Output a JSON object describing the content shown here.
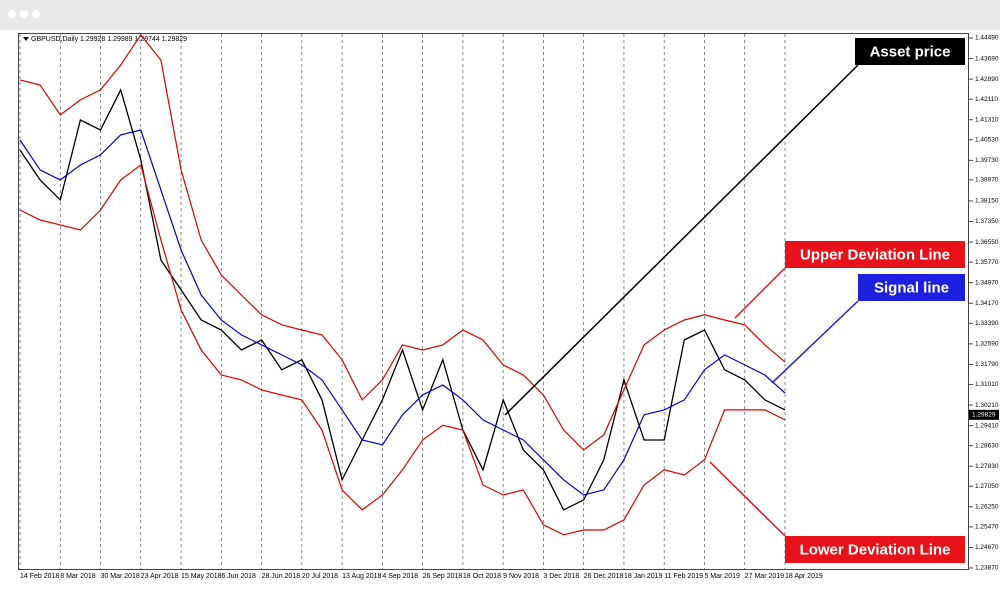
{
  "chart_data": {
    "type": "line",
    "title": "GBPUSD,Daily 1.29928 1.29989 1.29744 1.29829",
    "current_price": {
      "value": 1.29829,
      "label": "1.29829"
    },
    "categories": [
      "14 Feb 2018",
      null,
      "8 Mar 2018",
      null,
      "30 Mar 2018",
      null,
      "23 Apr 2018",
      null,
      "15 May 2018",
      null,
      "6 Jun 2018",
      null,
      "28 Jun 2018",
      null,
      "20 Jul 2018",
      null,
      "13 Aug 2018",
      null,
      "4 Sep 2018",
      null,
      "26 Sep 2018",
      null,
      "18 Oct 2018",
      null,
      "9 Nov 2018",
      null,
      "3 Dec 2018",
      null,
      "26 Dec 2018",
      null,
      "18 Jan 2019",
      null,
      "11 Feb 2019",
      null,
      "5 Mar 2019",
      null,
      "27 Mar 2019",
      null,
      "18 Apr 2019"
    ],
    "series": [
      {
        "color": "#000000",
        "values": [
          1.4013,
          1.3897,
          1.3819,
          1.413,
          1.4091,
          1.4247,
          1.3975,
          1.3585,
          1.3469,
          1.3352,
          1.3313,
          1.3235,
          1.3274,
          1.3158,
          1.3197,
          1.3041,
          1.273,
          1.2885,
          1.3041,
          1.3235,
          1.3002,
          1.3197,
          1.2924,
          1.2769,
          1.3041,
          1.2846,
          1.2769,
          1.2613,
          1.2652,
          1.2808,
          1.3119,
          1.2885,
          1.2885,
          1.3274,
          1.3313,
          1.3158,
          1.3119,
          1.3041,
          1.3002
        ]
      },
      {
        "color": "#0000e0",
        "values": [
          1.4052,
          1.3936,
          1.3897,
          1.3955,
          1.3994,
          1.4072,
          1.4091,
          1.3858,
          1.3624,
          1.3449,
          1.3352,
          1.3294,
          1.3255,
          1.3216,
          1.3177,
          1.3119,
          1.3002,
          1.2885,
          1.2866,
          1.2983,
          1.306,
          1.3099,
          1.3041,
          1.2963,
          1.2924,
          1.2885,
          1.2808,
          1.273,
          1.2671,
          1.2691,
          1.2808,
          1.2983,
          1.3002,
          1.3041,
          1.3158,
          1.3216,
          1.3177,
          1.3138,
          1.3068
        ]
      },
      {
        "color": "#e00000",
        "values": [
          1.4286,
          1.4266,
          1.415,
          1.4208,
          1.4247,
          1.4344,
          1.4461,
          1.4363,
          1.3936,
          1.3663,
          1.3527,
          1.3449,
          1.3372,
          1.3333,
          1.3313,
          1.3294,
          1.3197,
          1.3041,
          1.3119,
          1.3255,
          1.3235,
          1.3255,
          1.3313,
          1.3274,
          1.3177,
          1.3138,
          1.306,
          1.2924,
          1.2846,
          1.2905,
          1.308,
          1.3255,
          1.3313,
          1.3352,
          1.3372,
          1.3352,
          1.3333,
          1.3255,
          1.3189
        ]
      },
      {
        "color": "#e00000",
        "values": [
          1.378,
          1.3741,
          1.3722,
          1.3702,
          1.378,
          1.3897,
          1.3955,
          1.3663,
          1.3391,
          1.3235,
          1.3138,
          1.3119,
          1.308,
          1.306,
          1.3041,
          1.2924,
          1.2691,
          1.2613,
          1.2671,
          1.2769,
          1.2885,
          1.2942,
          1.2924,
          1.271,
          1.2671,
          1.2691,
          1.2555,
          1.2516,
          1.2535,
          1.2535,
          1.2574,
          1.271,
          1.2769,
          1.2749,
          1.2808,
          1.3002,
          1.3002,
          1.3002,
          1.2963
        ]
      }
    ],
    "ylim": [
      1.2387,
      1.4449
    ],
    "yticks": [
      {
        "value": 1.4449,
        "label": "1.44490"
      },
      {
        "value": 1.4369,
        "label": "1.43690"
      },
      {
        "value": 1.4289,
        "label": "1.42890"
      },
      {
        "value": 1.4211,
        "label": "1.42110"
      },
      {
        "value": 1.4131,
        "label": "1.41310"
      },
      {
        "value": 1.4053,
        "label": "1.40530"
      },
      {
        "value": 1.3973,
        "label": "1.39730"
      },
      {
        "value": 1.3897,
        "label": "1.38970"
      },
      {
        "value": 1.3815,
        "label": "1.38150"
      },
      {
        "value": 1.3735,
        "label": "1.37350"
      },
      {
        "value": 1.3655,
        "label": "1.36550"
      },
      {
        "value": 1.3577,
        "label": "1.35770"
      },
      {
        "value": 1.3497,
        "label": "1.34970"
      },
      {
        "value": 1.3417,
        "label": "1.34170"
      },
      {
        "value": 1.3339,
        "label": "1.33390"
      },
      {
        "value": 1.3259,
        "label": "1.32590"
      },
      {
        "value": 1.3179,
        "label": "1.31790"
      },
      {
        "value": 1.3101,
        "label": "1.31010"
      },
      {
        "value": 1.3021,
        "label": "1.30210"
      },
      {
        "value": 1.2941,
        "label": "1.29410"
      },
      {
        "value": 1.2863,
        "label": "1.28630"
      },
      {
        "value": 1.2783,
        "label": "1.27830"
      },
      {
        "value": 1.2705,
        "label": "1.27050"
      },
      {
        "value": 1.2625,
        "label": "1.26250"
      },
      {
        "value": 1.2547,
        "label": "1.25470"
      },
      {
        "value": 1.2467,
        "label": "1.24670"
      },
      {
        "value": 1.2387,
        "label": "1.23870"
      }
    ],
    "grid": true,
    "annotations": [
      {
        "text": "Asset price",
        "color": "#000000"
      },
      {
        "text": "Upper Deviation Line",
        "color": "#e8121a"
      },
      {
        "text": "Signal line",
        "color": "#1f1fe0"
      },
      {
        "text": "Lower Deviation Line",
        "color": "#e8121a"
      }
    ]
  }
}
